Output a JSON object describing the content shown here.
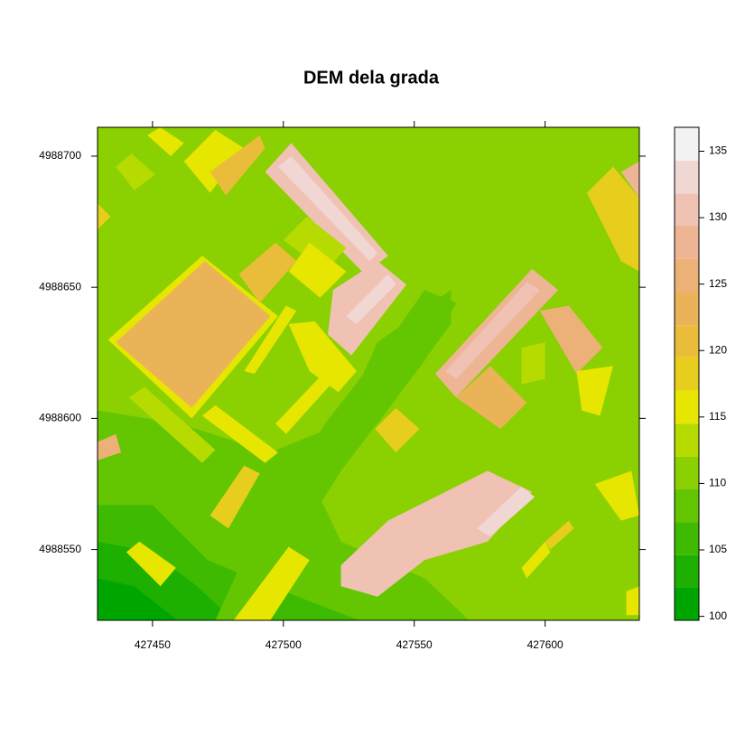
{
  "chart_data": {
    "type": "levelplot",
    "title": "DEM dela grada",
    "xlim": [
      427429,
      427636
    ],
    "ylim": [
      4988523,
      4988711
    ],
    "xticks": [
      427450,
      427500,
      427550,
      427600
    ],
    "yticks": [
      4988550,
      4988600,
      4988650,
      4988700
    ],
    "breaks": [
      99.7,
      102.2,
      104.6,
      107.1,
      109.6,
      112.0,
      114.5,
      117.0,
      119.5,
      121.9,
      124.4,
      126.9,
      129.4,
      131.8,
      134.3,
      136.8
    ],
    "colors": [
      "#00A600",
      "#1DB000",
      "#3EBB00",
      "#63C600",
      "#8BD000",
      "#B6DB00",
      "#E6E600",
      "#E7CE1D",
      "#E9BD3A",
      "#EAB358",
      "#ECB176",
      "#EDB594",
      "#EFC2B3",
      "#F1D7D3",
      "#F2F2F2"
    ],
    "colorbar_ticks": [
      100,
      105,
      110,
      115,
      120,
      125,
      130,
      135
    ],
    "patches": [
      {
        "x": [
          427429,
          427636,
          427636,
          427429
        ],
        "y": [
          4988711,
          4988711,
          4988523,
          4988523
        ],
        "value": 111
      },
      {
        "x": [
          427429,
          427460,
          427495,
          427522,
          427536,
          427564,
          427564,
          427536,
          427512,
          427522,
          427554,
          427571,
          427429
        ],
        "y": [
          4988603,
          4988598,
          4988587,
          4988598,
          4988629,
          4988649,
          4988636,
          4988598,
          4988574,
          4988553,
          4988539,
          4988523,
          4988523
        ],
        "value": 108.5
      },
      {
        "x": [
          427429,
          427450,
          427471,
          427495,
          427529,
          427429
        ],
        "y": [
          4988567,
          4988567,
          4988546,
          4988536,
          4988523,
          4988523
        ],
        "value": 106
      },
      {
        "x": [
          427429,
          427450,
          427467,
          427481,
          427429
        ],
        "y": [
          4988553,
          4988549,
          4988536,
          4988523,
          4988523
        ],
        "value": 103
      },
      {
        "x": [
          427429,
          427443,
          427457,
          427460,
          427429
        ],
        "y": [
          4988539,
          4988536,
          4988525,
          4988523,
          4988523
        ],
        "value": 101
      },
      {
        "x": [
          427554,
          427566,
          427554,
          427522,
          427505,
          427491,
          427474,
          427491,
          427516,
          427540
        ],
        "y": [
          4988649,
          4988644,
          4988622,
          4988580,
          4988553,
          4988523,
          4988523,
          4988560,
          4988598,
          4988629
        ],
        "value": 108.5
      },
      {
        "x": [
          427433,
          427469,
          427498,
          427465
        ],
        "y": [
          4988630,
          4988662,
          4988639,
          4988600
        ],
        "value": 116
      },
      {
        "x": [
          427436,
          427470,
          427495,
          427465
        ],
        "y": [
          4988629,
          4988660,
          4988639,
          4988604
        ],
        "value": 123
      },
      {
        "x": [
          427493,
          427503,
          427540,
          427531
        ],
        "y": [
          4988694,
          4988705,
          4988662,
          4988655
        ],
        "value": 130
      },
      {
        "x": [
          427498,
          427503,
          427536,
          427533
        ],
        "y": [
          4988696,
          4988700,
          4988663,
          4988660
        ],
        "value": 133
      },
      {
        "x": [
          427519,
          427536,
          427547,
          427526,
          427517
        ],
        "y": [
          4988649,
          4988660,
          4988651,
          4988624,
          4988632
        ],
        "value": 130
      },
      {
        "x": [
          427524,
          427540,
          427543,
          427528
        ],
        "y": [
          4988639,
          4988655,
          4988651,
          4988636
        ],
        "value": 133
      },
      {
        "x": [
          427558,
          427595,
          427605,
          427566
        ],
        "y": [
          4988617,
          4988657,
          4988649,
          4988608
        ],
        "value": 128
      },
      {
        "x": [
          427562,
          427593,
          427598,
          427566
        ],
        "y": [
          4988618,
          4988652,
          4988649,
          4988615
        ],
        "value": 131
      },
      {
        "x": [
          427566,
          427579,
          427593,
          427583
        ],
        "y": [
          4988608,
          4988620,
          4988606,
          4988596
        ],
        "value": 124
      },
      {
        "x": [
          427598,
          427609,
          427622,
          427612
        ],
        "y": [
          4988641,
          4988643,
          4988627,
          4988617
        ],
        "value": 126
      },
      {
        "x": [
          427522,
          427540,
          427578,
          427595,
          427578,
          427554,
          427536,
          427522
        ],
        "y": [
          4988544,
          4988561,
          4988580,
          4988572,
          4988553,
          4988546,
          4988532,
          4988536
        ],
        "value": 130
      },
      {
        "x": [
          427574,
          427591,
          427596,
          427579
        ],
        "y": [
          4988558,
          4988574,
          4988570,
          4988555
        ],
        "value": 134
      },
      {
        "x": [
          427483,
          427497,
          427505,
          427491
        ],
        "y": [
          4988655,
          4988667,
          4988660,
          4988644
        ],
        "value": 121
      },
      {
        "x": [
          427500,
          427509,
          427524,
          427516
        ],
        "y": [
          4988668,
          4988677,
          4988665,
          4988656
        ],
        "value": 114
      },
      {
        "x": [
          427502,
          427510,
          427524,
          427514
        ],
        "y": [
          4988656,
          4988667,
          4988656,
          4988646
        ],
        "value": 116
      },
      {
        "x": [
          427441,
          427447,
          427474,
          427469
        ],
        "y": [
          4988608,
          4988612,
          4988588,
          4988583
        ],
        "value": 114
      },
      {
        "x": [
          427469,
          427474,
          427498,
          427493
        ],
        "y": [
          4988601,
          4988605,
          4988587,
          4988583
        ],
        "value": 116
      },
      {
        "x": [
          427472,
          427485,
          427491,
          427479
        ],
        "y": [
          4988563,
          4988582,
          4988579,
          4988558
        ],
        "value": 118
      },
      {
        "x": [
          427481,
          427502,
          427510,
          427495
        ],
        "y": [
          4988523,
          4988551,
          4988546,
          4988523
        ],
        "value": 116
      },
      {
        "x": [
          427535,
          427543,
          427552,
          427543
        ],
        "y": [
          4988596,
          4988604,
          4988596,
          4988587
        ],
        "value": 117
      },
      {
        "x": [
          427436,
          427442,
          427451,
          427443
        ],
        "y": [
          4988696,
          4988701,
          4988693,
          4988687
        ],
        "value": 114
      },
      {
        "x": [
          427448,
          427453,
          427462,
          427457
        ],
        "y": [
          4988708,
          4988711,
          4988705,
          4988700
        ],
        "value": 116
      },
      {
        "x": [
          427462,
          427474,
          427485,
          427472
        ],
        "y": [
          4988698,
          4988710,
          4988703,
          4988686
        ],
        "value": 116
      },
      {
        "x": [
          427472,
          427491,
          427493,
          427478
        ],
        "y": [
          4988694,
          4988708,
          4988703,
          4988685
        ],
        "value": 120
      },
      {
        "x": [
          427616,
          427626,
          427636,
          427636,
          427629
        ],
        "y": [
          4988686,
          4988696,
          4988684,
          4988656,
          4988660
        ],
        "value": 117
      },
      {
        "x": [
          427629,
          427636,
          427636
        ],
        "y": [
          4988694,
          4988698,
          4988684
        ],
        "value": 127
      },
      {
        "x": [
          427429,
          427434,
          427429
        ],
        "y": [
          4988682,
          4988677,
          4988672
        ],
        "value": 118
      },
      {
        "x": [
          427429,
          427436,
          427438,
          427429
        ],
        "y": [
          4988591,
          4988594,
          4988587,
          4988584
        ],
        "value": 125
      },
      {
        "x": [
          427591,
          427600,
          427600,
          427591
        ],
        "y": [
          4988627,
          4988629,
          4988615,
          4988613
        ],
        "value": 114
      },
      {
        "x": [
          427440,
          427445,
          427459,
          427453
        ],
        "y": [
          4988549,
          4988553,
          4988543,
          4988536
        ],
        "value": 116
      },
      {
        "x": [
          427612,
          427626,
          427621,
          427614
        ],
        "y": [
          4988618,
          4988620,
          4988601,
          4988603
        ],
        "value": 116
      },
      {
        "x": [
          427619,
          427633,
          427636,
          427629
        ],
        "y": [
          4988575,
          4988580,
          4988563,
          4988561
        ],
        "value": 115
      },
      {
        "x": [
          427600,
          427609,
          427611,
          427602
        ],
        "y": [
          4988553,
          4988561,
          4988558,
          4988550
        ],
        "value": 117
      },
      {
        "x": [
          427591,
          427600,
          427602,
          427593
        ],
        "y": [
          4988543,
          4988553,
          4988549,
          4988539
        ],
        "value": 115
      },
      {
        "x": [
          427631,
          427636,
          427636,
          427631
        ],
        "y": [
          4988534,
          4988536,
          4988525,
          4988525
        ],
        "value": 116
      },
      {
        "x": [
          427485,
          427501,
          427505,
          427489
        ],
        "y": [
          4988618,
          4988643,
          4988641,
          4988617
        ],
        "value": 116
      },
      {
        "x": [
          427502,
          427512,
          427528,
          427521,
          427510
        ],
        "y": [
          4988636,
          4988637,
          4988618,
          4988610,
          4988618
        ],
        "value": 116
      },
      {
        "x": [
          427497,
          427516,
          427520,
          427501
        ],
        "y": [
          4988598,
          4988618,
          4988615,
          4988594
        ],
        "value": 115
      }
    ]
  }
}
